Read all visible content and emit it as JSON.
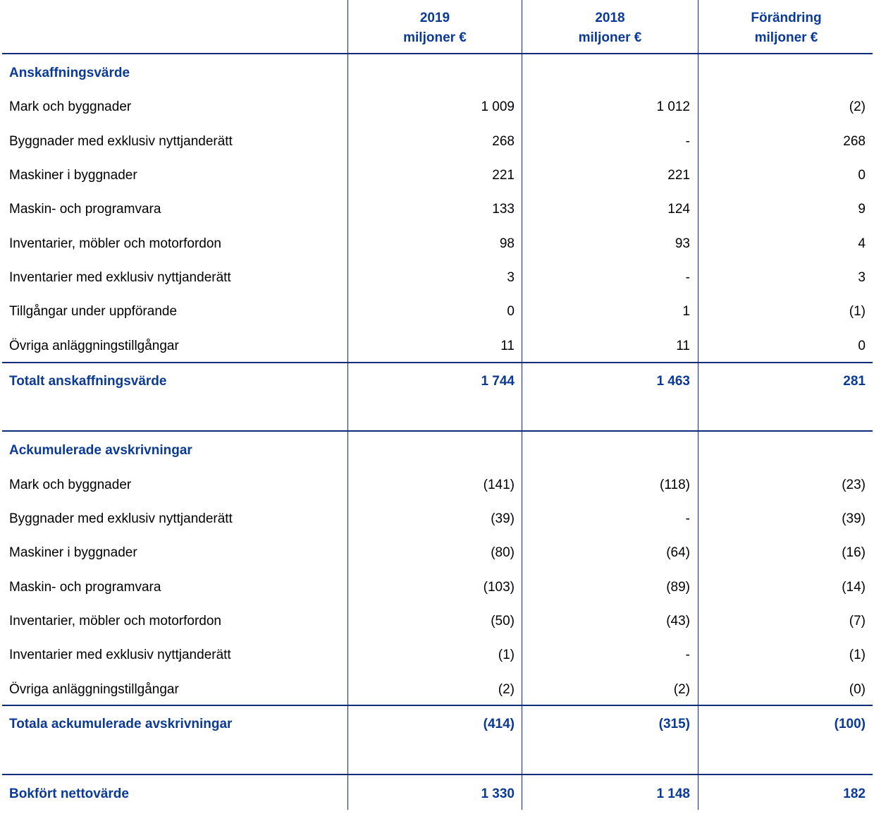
{
  "header": {
    "col1_year": "2019",
    "col1_unit": "miljoner €",
    "col2_year": "2018",
    "col2_unit": "miljoner €",
    "col3_title": "Förändring",
    "col3_unit": "miljoner €"
  },
  "section1": {
    "title": "Anskaffningsvärde",
    "rows": [
      {
        "label": "Mark och byggnader",
        "v2019": "1 009",
        "v2018": "1 012",
        "change": "(2)"
      },
      {
        "label": "Byggnader med exklusiv nyttjanderätt",
        "v2019": "268",
        "v2018": "-",
        "change": "268"
      },
      {
        "label": "Maskiner i byggnader",
        "v2019": "221",
        "v2018": "221",
        "change": "0"
      },
      {
        "label": "Maskin- och programvara",
        "v2019": "133",
        "v2018": "124",
        "change": "9"
      },
      {
        "label": "Inventarier, möbler och motorfordon",
        "v2019": "98",
        "v2018": "93",
        "change": "4"
      },
      {
        "label": "Inventarier med exklusiv nyttjanderätt",
        "v2019": "3",
        "v2018": "-",
        "change": "3"
      },
      {
        "label": "Tillgångar under uppförande",
        "v2019": "0",
        "v2018": "1",
        "change": "(1)"
      },
      {
        "label": "Övriga anläggningstillgångar",
        "v2019": "11",
        "v2018": "11",
        "change": "0"
      }
    ],
    "total": {
      "label": "Totalt anskaffningsvärde",
      "v2019": "1 744",
      "v2018": "1 463",
      "change": "281"
    }
  },
  "section2": {
    "title": "Ackumulerade avskrivningar",
    "rows": [
      {
        "label": "Mark och byggnader",
        "v2019": "(141)",
        "v2018": "(118)",
        "change": "(23)"
      },
      {
        "label": "Byggnader med exklusiv nyttjanderätt",
        "v2019": "(39)",
        "v2018": "-",
        "change": "(39)"
      },
      {
        "label": "Maskiner i byggnader",
        "v2019": "(80)",
        "v2018": "(64)",
        "change": "(16)"
      },
      {
        "label": "Maskin- och programvara",
        "v2019": "(103)",
        "v2018": "(89)",
        "change": "(14)"
      },
      {
        "label": "Inventarier, möbler och motorfordon",
        "v2019": "(50)",
        "v2018": "(43)",
        "change": "(7)"
      },
      {
        "label": "Inventarier med exklusiv nyttjanderätt",
        "v2019": "(1)",
        "v2018": "-",
        "change": "(1)"
      },
      {
        "label": "Övriga anläggningstillgångar",
        "v2019": "(2)",
        "v2018": "(2)",
        "change": "(0)"
      }
    ],
    "total": {
      "label": "Totala ackumulerade avskrivningar",
      "v2019": "(414)",
      "v2018": "(315)",
      "change": "(100)"
    }
  },
  "net": {
    "label": "Bokfört nettovärde",
    "v2019": "1 330",
    "v2018": "1 148",
    "change": "182"
  }
}
